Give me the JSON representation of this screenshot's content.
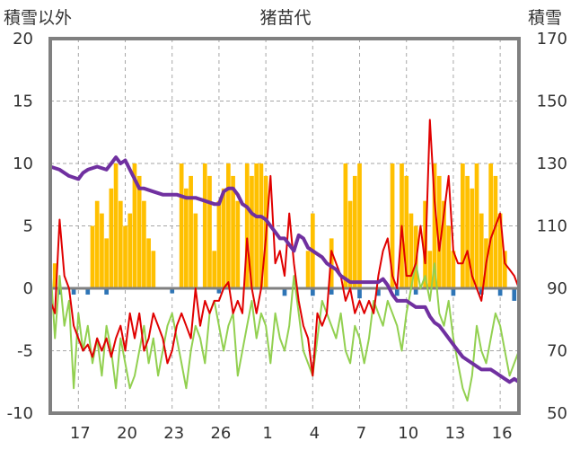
{
  "chart_data": {
    "type": "line",
    "title": "猪苗代",
    "left_axis": {
      "label": "積雪以外",
      "range": [
        -10,
        20
      ],
      "ticks": [
        -10,
        -5,
        0,
        5,
        10,
        15,
        20
      ]
    },
    "right_axis": {
      "label": "積雪",
      "range": [
        50,
        170
      ],
      "ticks": [
        50,
        70,
        90,
        110,
        130,
        150,
        170
      ]
    },
    "x_tick_labels": [
      "17",
      "20",
      "23",
      "26",
      "1",
      "4",
      "7",
      "10",
      "13",
      "16"
    ],
    "x_range": [
      0,
      100
    ],
    "x_ticks_pos": [
      6,
      16,
      26,
      36,
      46,
      56,
      66,
      76,
      86,
      96
    ],
    "grid": true,
    "colors": {
      "snow_depth": "#7030a0",
      "precipitation": "#ffc000",
      "temperature": "#e00000",
      "other_green": "#92d050",
      "negative_bar": "#2e75b6",
      "zero_line": "#808080",
      "frame": "#808080"
    },
    "series": {
      "snow_depth": [
        [
          0,
          129
        ],
        [
          2,
          128
        ],
        [
          4,
          126
        ],
        [
          6,
          125
        ],
        [
          7,
          127
        ],
        [
          8,
          128
        ],
        [
          10,
          129
        ],
        [
          12,
          128
        ],
        [
          13,
          130
        ],
        [
          14,
          132
        ],
        [
          15,
          130
        ],
        [
          16,
          131
        ],
        [
          17,
          128
        ],
        [
          18,
          125
        ],
        [
          19,
          122
        ],
        [
          20,
          122
        ],
        [
          22,
          121
        ],
        [
          24,
          120
        ],
        [
          26,
          120
        ],
        [
          27,
          120
        ],
        [
          29,
          119
        ],
        [
          31,
          119
        ],
        [
          33,
          118
        ],
        [
          35,
          117
        ],
        [
          36,
          117
        ],
        [
          37,
          121
        ],
        [
          38,
          122
        ],
        [
          39,
          122
        ],
        [
          40,
          120
        ],
        [
          41,
          117
        ],
        [
          42,
          116
        ],
        [
          43,
          114
        ],
        [
          44,
          113
        ],
        [
          45,
          113
        ],
        [
          46,
          112
        ],
        [
          47,
          110
        ],
        [
          48,
          108
        ],
        [
          49,
          106
        ],
        [
          50,
          106
        ],
        [
          51,
          104
        ],
        [
          52,
          102
        ],
        [
          53,
          107
        ],
        [
          54,
          106
        ],
        [
          55,
          103
        ],
        [
          56,
          102
        ],
        [
          57,
          101
        ],
        [
          58,
          100
        ],
        [
          59,
          98
        ],
        [
          60,
          97
        ],
        [
          61,
          96
        ],
        [
          62,
          94
        ],
        [
          63,
          93
        ],
        [
          64,
          92
        ],
        [
          65,
          92
        ],
        [
          66,
          92
        ],
        [
          67,
          92
        ],
        [
          68,
          92
        ],
        [
          69,
          92
        ],
        [
          70,
          92
        ],
        [
          71,
          93
        ],
        [
          72,
          91
        ],
        [
          73,
          88
        ],
        [
          74,
          86
        ],
        [
          75,
          86
        ],
        [
          76,
          86
        ],
        [
          77,
          85
        ],
        [
          78,
          84
        ],
        [
          79,
          84
        ],
        [
          80,
          84
        ],
        [
          81,
          81
        ],
        [
          82,
          79
        ],
        [
          83,
          78
        ],
        [
          84,
          76
        ],
        [
          85,
          74
        ],
        [
          86,
          72
        ],
        [
          87,
          70
        ],
        [
          88,
          68
        ],
        [
          89,
          67
        ],
        [
          90,
          66
        ],
        [
          91,
          65
        ],
        [
          92,
          64
        ],
        [
          93,
          64
        ],
        [
          94,
          64
        ],
        [
          95,
          63
        ],
        [
          96,
          62
        ],
        [
          97,
          61
        ],
        [
          98,
          60
        ],
        [
          99,
          61
        ],
        [
          100,
          60
        ]
      ],
      "temperature": [
        [
          0,
          -1
        ],
        [
          1,
          -2
        ],
        [
          2,
          5.5
        ],
        [
          3,
          1
        ],
        [
          4,
          0
        ],
        [
          5,
          -3
        ],
        [
          6,
          -4
        ],
        [
          7,
          -5
        ],
        [
          8,
          -4.5
        ],
        [
          9,
          -5.5
        ],
        [
          10,
          -4
        ],
        [
          11,
          -5
        ],
        [
          12,
          -4
        ],
        [
          13,
          -5.5
        ],
        [
          14,
          -4
        ],
        [
          15,
          -3
        ],
        [
          16,
          -5
        ],
        [
          17,
          -2
        ],
        [
          18,
          -4
        ],
        [
          19,
          -2
        ],
        [
          20,
          -5
        ],
        [
          21,
          -4
        ],
        [
          22,
          -2
        ],
        [
          23,
          -3
        ],
        [
          24,
          -4
        ],
        [
          25,
          -6
        ],
        [
          26,
          -5
        ],
        [
          27,
          -3
        ],
        [
          28,
          -2
        ],
        [
          29,
          -3
        ],
        [
          30,
          -4
        ],
        [
          31,
          0
        ],
        [
          32,
          -3
        ],
        [
          33,
          -1
        ],
        [
          34,
          -2
        ],
        [
          35,
          -1
        ],
        [
          36,
          -1
        ],
        [
          37,
          0
        ],
        [
          38,
          0.5
        ],
        [
          39,
          -2
        ],
        [
          40,
          -1
        ],
        [
          41,
          -2
        ],
        [
          42,
          4
        ],
        [
          43,
          0
        ],
        [
          44,
          -2
        ],
        [
          45,
          0
        ],
        [
          46,
          4
        ],
        [
          47,
          9
        ],
        [
          48,
          2
        ],
        [
          49,
          3
        ],
        [
          50,
          1
        ],
        [
          51,
          6
        ],
        [
          52,
          2
        ],
        [
          53,
          -1
        ],
        [
          54,
          -3
        ],
        [
          55,
          -4
        ],
        [
          56,
          -7
        ],
        [
          57,
          -2
        ],
        [
          58,
          -3
        ],
        [
          59,
          -2
        ],
        [
          60,
          3
        ],
        [
          61,
          2
        ],
        [
          62,
          1
        ],
        [
          63,
          -1
        ],
        [
          64,
          0
        ],
        [
          65,
          -2
        ],
        [
          66,
          -1
        ],
        [
          67,
          -2
        ],
        [
          68,
          -1
        ],
        [
          69,
          -2
        ],
        [
          70,
          1
        ],
        [
          71,
          3
        ],
        [
          72,
          4
        ],
        [
          73,
          1
        ],
        [
          74,
          0
        ],
        [
          75,
          5
        ],
        [
          76,
          1
        ],
        [
          77,
          1
        ],
        [
          78,
          2
        ],
        [
          79,
          5
        ],
        [
          80,
          2
        ],
        [
          81,
          13.5
        ],
        [
          82,
          7
        ],
        [
          83,
          3
        ],
        [
          84,
          6
        ],
        [
          85,
          9
        ],
        [
          86,
          3
        ],
        [
          87,
          2
        ],
        [
          88,
          2
        ],
        [
          89,
          3
        ],
        [
          90,
          1
        ],
        [
          91,
          0
        ],
        [
          92,
          -1
        ],
        [
          93,
          2
        ],
        [
          94,
          4
        ],
        [
          95,
          5
        ],
        [
          96,
          6
        ],
        [
          97,
          2
        ],
        [
          98,
          1.5
        ],
        [
          99,
          1
        ],
        [
          100,
          0
        ]
      ],
      "other_green": [
        [
          0,
          2
        ],
        [
          1,
          -4
        ],
        [
          2,
          1
        ],
        [
          3,
          -3
        ],
        [
          4,
          -1
        ],
        [
          5,
          -8
        ],
        [
          6,
          -2
        ],
        [
          7,
          -5
        ],
        [
          8,
          -3
        ],
        [
          9,
          -6
        ],
        [
          10,
          -4
        ],
        [
          11,
          -7
        ],
        [
          12,
          -3
        ],
        [
          13,
          -5
        ],
        [
          14,
          -8
        ],
        [
          15,
          -4
        ],
        [
          16,
          -6
        ],
        [
          17,
          -8
        ],
        [
          18,
          -7
        ],
        [
          19,
          -5
        ],
        [
          20,
          -3
        ],
        [
          21,
          -6
        ],
        [
          22,
          -4
        ],
        [
          23,
          -7
        ],
        [
          24,
          -5
        ],
        [
          25,
          -3
        ],
        [
          26,
          -2
        ],
        [
          27,
          -4
        ],
        [
          28,
          -6
        ],
        [
          29,
          -8
        ],
        [
          30,
          -5
        ],
        [
          31,
          -3
        ],
        [
          32,
          -4
        ],
        [
          33,
          -6
        ],
        [
          34,
          -2
        ],
        [
          35,
          -1
        ],
        [
          36,
          -3
        ],
        [
          37,
          -5
        ],
        [
          38,
          -3
        ],
        [
          39,
          -2
        ],
        [
          40,
          -7
        ],
        [
          41,
          -5
        ],
        [
          42,
          -3
        ],
        [
          43,
          -1
        ],
        [
          44,
          -4
        ],
        [
          45,
          -2
        ],
        [
          46,
          -3
        ],
        [
          47,
          -6
        ],
        [
          48,
          -2
        ],
        [
          49,
          -4
        ],
        [
          50,
          -5
        ],
        [
          51,
          -3
        ],
        [
          52,
          1
        ],
        [
          53,
          -2
        ],
        [
          54,
          -5
        ],
        [
          55,
          -6
        ],
        [
          56,
          -7
        ],
        [
          57,
          -4
        ],
        [
          58,
          -1
        ],
        [
          59,
          -2
        ],
        [
          60,
          -3
        ],
        [
          61,
          -4
        ],
        [
          62,
          -2
        ],
        [
          63,
          -5
        ],
        [
          64,
          -6
        ],
        [
          65,
          -3
        ],
        [
          66,
          -4
        ],
        [
          67,
          -6
        ],
        [
          68,
          -4
        ],
        [
          69,
          -1
        ],
        [
          70,
          -2
        ],
        [
          71,
          -3
        ],
        [
          72,
          -1
        ],
        [
          73,
          -2
        ],
        [
          74,
          -3
        ],
        [
          75,
          -5
        ],
        [
          76,
          -2
        ],
        [
          77,
          0
        ],
        [
          78,
          2
        ],
        [
          79,
          0
        ],
        [
          80,
          1
        ],
        [
          81,
          -1
        ],
        [
          82,
          2
        ],
        [
          83,
          -2
        ],
        [
          84,
          -3
        ],
        [
          85,
          -1
        ],
        [
          86,
          -4
        ],
        [
          87,
          -6
        ],
        [
          88,
          -8
        ],
        [
          89,
          -9
        ],
        [
          90,
          -7
        ],
        [
          91,
          -3
        ],
        [
          92,
          -5
        ],
        [
          93,
          -6
        ],
        [
          94,
          -4
        ],
        [
          95,
          -2
        ],
        [
          96,
          -3
        ],
        [
          97,
          -5
        ],
        [
          98,
          -7
        ],
        [
          99,
          -6
        ],
        [
          100,
          -5
        ]
      ],
      "precipitation_bars": [
        [
          1,
          2
        ],
        [
          9,
          5
        ],
        [
          10,
          7
        ],
        [
          11,
          6
        ],
        [
          12,
          4
        ],
        [
          13,
          8
        ],
        [
          14,
          10
        ],
        [
          15,
          7
        ],
        [
          16,
          5
        ],
        [
          17,
          6
        ],
        [
          18,
          10
        ],
        [
          19,
          9
        ],
        [
          20,
          7
        ],
        [
          21,
          4
        ],
        [
          22,
          3
        ],
        [
          28,
          10
        ],
        [
          29,
          8
        ],
        [
          30,
          9
        ],
        [
          31,
          6
        ],
        [
          33,
          10
        ],
        [
          34,
          9
        ],
        [
          35,
          3
        ],
        [
          36,
          7
        ],
        [
          37,
          8
        ],
        [
          38,
          10
        ],
        [
          39,
          9
        ],
        [
          40,
          7
        ],
        [
          42,
          10
        ],
        [
          43,
          9
        ],
        [
          44,
          10
        ],
        [
          45,
          10
        ],
        [
          46,
          9
        ],
        [
          55,
          3
        ],
        [
          56,
          6
        ],
        [
          60,
          4
        ],
        [
          63,
          10
        ],
        [
          64,
          7
        ],
        [
          65,
          9
        ],
        [
          66,
          10
        ],
        [
          73,
          10
        ],
        [
          75,
          10
        ],
        [
          76,
          9
        ],
        [
          77,
          6
        ],
        [
          78,
          5
        ],
        [
          80,
          7
        ],
        [
          81,
          3
        ],
        [
          82,
          10
        ],
        [
          83,
          9
        ],
        [
          84,
          7
        ],
        [
          85,
          5
        ],
        [
          86,
          3
        ],
        [
          88,
          10
        ],
        [
          89,
          9
        ],
        [
          90,
          8
        ],
        [
          91,
          10
        ],
        [
          92,
          6
        ],
        [
          93,
          4
        ],
        [
          94,
          10
        ],
        [
          95,
          9
        ],
        [
          96,
          6
        ],
        [
          97,
          3
        ]
      ],
      "negative_bars": [
        [
          2,
          -0.5
        ],
        [
          5,
          -0.5
        ],
        [
          8,
          -0.5
        ],
        [
          12,
          -0.5
        ],
        [
          26,
          -0.4
        ],
        [
          36,
          -0.4
        ],
        [
          50,
          -0.6
        ],
        [
          56,
          -0.6
        ],
        [
          60,
          -0.5
        ],
        [
          66,
          -0.8
        ],
        [
          70,
          -0.6
        ],
        [
          74,
          -0.6
        ],
        [
          78,
          -0.5
        ],
        [
          86,
          -0.6
        ],
        [
          92,
          -0.5
        ],
        [
          96,
          -0.6
        ],
        [
          99,
          -1
        ]
      ]
    }
  }
}
